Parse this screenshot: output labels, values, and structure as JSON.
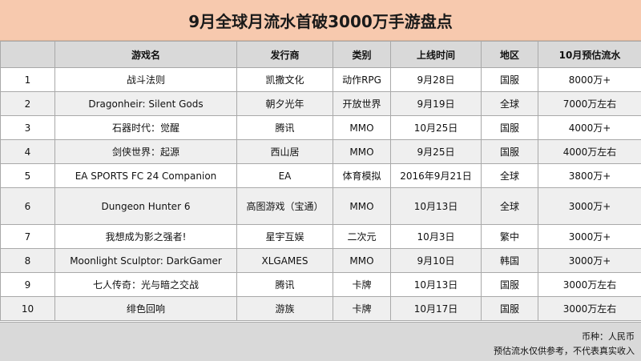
{
  "title": "9月全球月流水首破3000万手游盘点",
  "headers": [
    "",
    "游戏名",
    "发行商",
    "类别",
    "上线时间",
    "地区",
    "10月预估流水"
  ],
  "rows": [
    {
      "rank": "1",
      "name": "战斗法则",
      "publisher": "凯撒文化",
      "category": "动作RPG",
      "date": "9月28日",
      "region": "国服",
      "revenue": "8000万+"
    },
    {
      "rank": "2",
      "name": "Dragonheir: Silent Gods",
      "publisher": "朝夕光年",
      "category": "开放世界",
      "date": "9月19日",
      "region": "全球",
      "revenue": "7000万左右"
    },
    {
      "rank": "3",
      "name": "石器时代：觉醒",
      "publisher": "腾讯",
      "category": "MMO",
      "date": "10月25日",
      "region": "国服",
      "revenue": "4000万+"
    },
    {
      "rank": "4",
      "name": "剑侠世界：起源",
      "publisher": "西山居",
      "category": "MMO",
      "date": "9月25日",
      "region": "国服",
      "revenue": "4000万左右"
    },
    {
      "rank": "5",
      "name": "EA SPORTS FC 24 Companion",
      "publisher": "EA",
      "category": "体育模拟",
      "date": "2016年9月21日",
      "region": "全球",
      "revenue": "3800万+"
    },
    {
      "rank": "6",
      "name": "Dungeon Hunter 6",
      "publisher": "高图游戏（宝通）",
      "category": "MMO",
      "date": "10月13日",
      "region": "全球",
      "revenue": "3000万+"
    },
    {
      "rank": "7",
      "name": "我想成为影之强者!",
      "publisher": "星宇互娱",
      "category": "二次元",
      "date": "10月3日",
      "region": "繁中",
      "revenue": "3000万+"
    },
    {
      "rank": "8",
      "name": "Moonlight Sculptor: DarkGamer",
      "publisher": "XLGAMES",
      "category": "MMO",
      "date": "9月10日",
      "region": "韩国",
      "revenue": "3000万+"
    },
    {
      "rank": "9",
      "name": "七人传奇：光与暗之交战",
      "publisher": "腾讯",
      "category": "卡牌",
      "date": "10月13日",
      "region": "国服",
      "revenue": "3000万左右"
    },
    {
      "rank": "10",
      "name": "绯色回响",
      "publisher": "游族",
      "category": "卡牌",
      "date": "10月17日",
      "region": "国服",
      "revenue": "3000万左右"
    }
  ],
  "footer": {
    "currency": "币种：人民币",
    "disclaimer": "预估流水仅供参考，不代表真实收入"
  },
  "colors": {
    "title_bg": "#f7c9ae",
    "header_bg": "#d9d9d9",
    "stripe_bg": "#efefef",
    "footer_bg": "#d9d9d9",
    "grid": "#a9a9a9"
  }
}
